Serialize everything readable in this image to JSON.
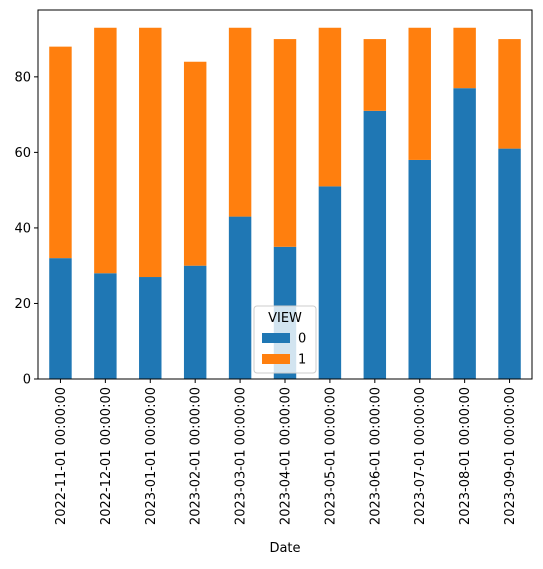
{
  "chart_data": {
    "type": "stacked_bar",
    "xlabel": "Date",
    "categories": [
      "2022-11-01 00:00:00",
      "2022-12-01 00:00:00",
      "2023-01-01 00:00:00",
      "2023-02-01 00:00:00",
      "2023-03-01 00:00:00",
      "2023-04-01 00:00:00",
      "2023-05-01 00:00:00",
      "2023-06-01 00:00:00",
      "2023-07-01 00:00:00",
      "2023-08-01 00:00:00",
      "2023-09-01 00:00:00"
    ],
    "series": [
      {
        "name": "0",
        "color": "#1f77b4",
        "values": [
          32,
          28,
          27,
          30,
          43,
          35,
          51,
          71,
          58,
          77,
          61
        ]
      },
      {
        "name": "1",
        "color": "#ff7f0e",
        "values": [
          56,
          65,
          66,
          54,
          50,
          55,
          42,
          19,
          35,
          16,
          29
        ]
      }
    ],
    "legend_title": "VIEW",
    "legend_loc": "lower center",
    "ylim": [
      0,
      97.7
    ],
    "yticks": [
      0,
      20,
      40,
      60,
      80
    ]
  }
}
